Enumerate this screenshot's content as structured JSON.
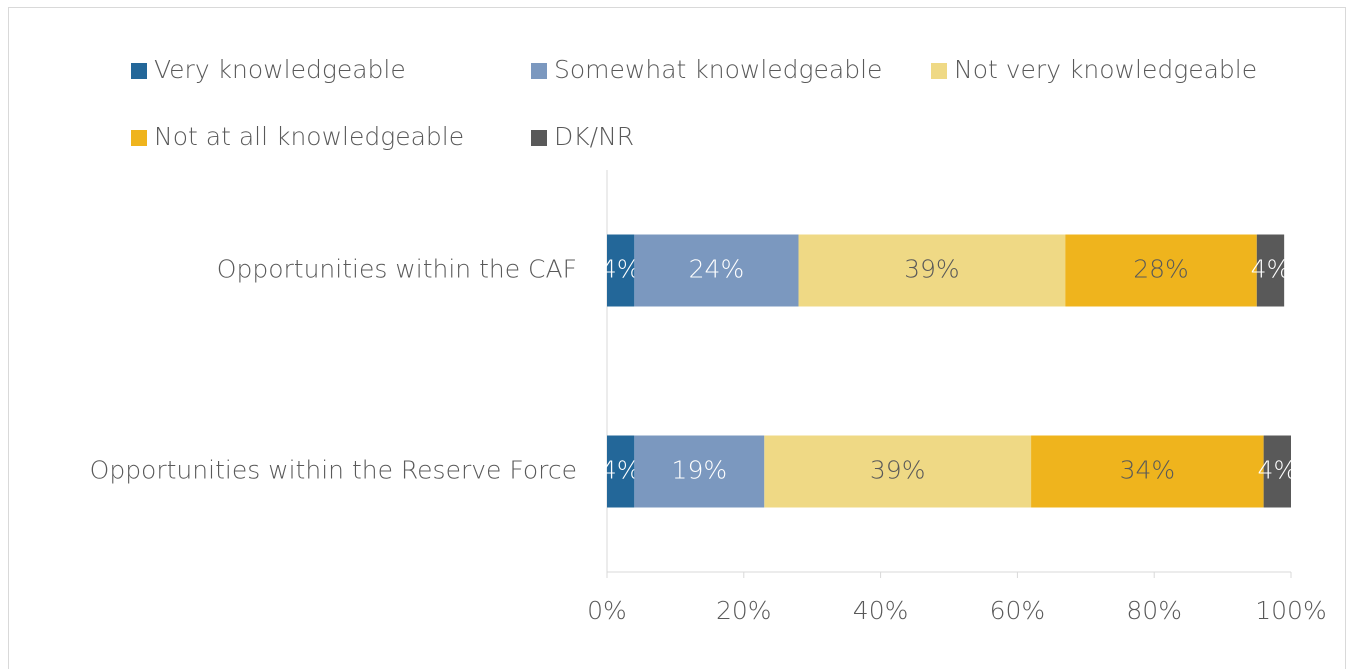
{
  "chart_data": {
    "type": "stacked_bar_horizontal",
    "categories": [
      "Opportunities within the CAF",
      "Opportunities within the Reserve Force"
    ],
    "series": [
      {
        "name": "Very knowledgeable",
        "color": "#236799",
        "values": [
          4,
          4
        ],
        "value_labels": [
          "4%",
          "4%"
        ]
      },
      {
        "name": "Somewhat knowledgeable",
        "color": "#7b98bf",
        "values": [
          24,
          19
        ],
        "value_labels": [
          "24%",
          "19%"
        ]
      },
      {
        "name": "Not very knowledgeable",
        "color": "#efd985",
        "values": [
          39,
          39
        ],
        "value_labels": [
          "39%",
          "39%"
        ]
      },
      {
        "name": "Not at all knowledgeable",
        "color": "#efb41d",
        "values": [
          28,
          34
        ],
        "value_labels": [
          "28%",
          "34%"
        ]
      },
      {
        "name": "DK/NR",
        "color": "#595959",
        "values": [
          4,
          4
        ],
        "value_labels": [
          "4%",
          "4%"
        ]
      }
    ],
    "xlim": [
      0,
      100
    ],
    "xticks": [
      {
        "value": 0,
        "label": "0%"
      },
      {
        "value": 20,
        "label": "20%"
      },
      {
        "value": 40,
        "label": "40%"
      },
      {
        "value": 60,
        "label": "60%"
      },
      {
        "value": 80,
        "label": "80%"
      },
      {
        "value": 100,
        "label": "100%"
      }
    ],
    "legend": "top"
  }
}
